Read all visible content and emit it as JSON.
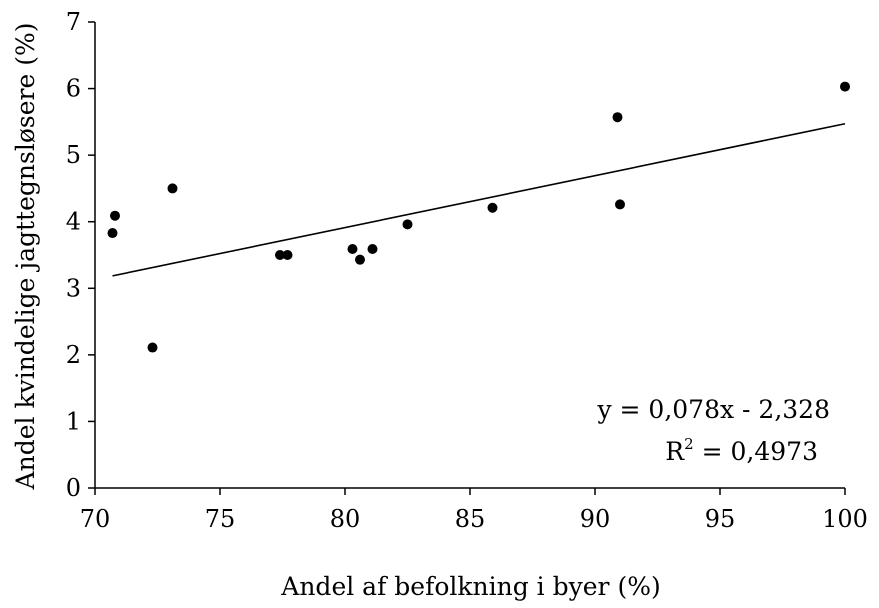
{
  "chart_data": {
    "type": "scatter",
    "xlabel": "Andel af befolkning i byer (%)",
    "ylabel": "Andel kvindelige jagttegnsløsere (%)",
    "xlim": [
      70,
      100
    ],
    "ylim": [
      0,
      7
    ],
    "xticks": [
      70,
      75,
      80,
      85,
      90,
      95,
      100
    ],
    "yticks": [
      0,
      1,
      2,
      3,
      4,
      5,
      6,
      7
    ],
    "xtick_labels": [
      "70",
      "75",
      "80",
      "85",
      "90",
      "95",
      "100"
    ],
    "ytick_labels": [
      "0",
      "1",
      "2",
      "3",
      "4",
      "5",
      "6",
      "7"
    ],
    "grid": false,
    "points": [
      {
        "x": 70.7,
        "y": 3.83
      },
      {
        "x": 70.8,
        "y": 4.09
      },
      {
        "x": 72.3,
        "y": 2.11
      },
      {
        "x": 73.1,
        "y": 4.5
      },
      {
        "x": 77.4,
        "y": 3.5
      },
      {
        "x": 77.7,
        "y": 3.5
      },
      {
        "x": 80.3,
        "y": 3.59
      },
      {
        "x": 80.6,
        "y": 3.43
      },
      {
        "x": 81.1,
        "y": 3.59
      },
      {
        "x": 82.5,
        "y": 3.96
      },
      {
        "x": 85.9,
        "y": 4.21
      },
      {
        "x": 90.9,
        "y": 5.57
      },
      {
        "x": 91.0,
        "y": 4.26
      },
      {
        "x": 100.0,
        "y": 6.03
      }
    ],
    "trendline": {
      "type": "linear",
      "slope": 0.078,
      "intercept": -2.328,
      "x_range": [
        70.7,
        100
      ]
    },
    "annotations": {
      "equation": "y = 0,078x - 2,328",
      "r2_prefix": "R",
      "r2_sup": "2",
      "r2_value": " = 0,4973"
    }
  }
}
